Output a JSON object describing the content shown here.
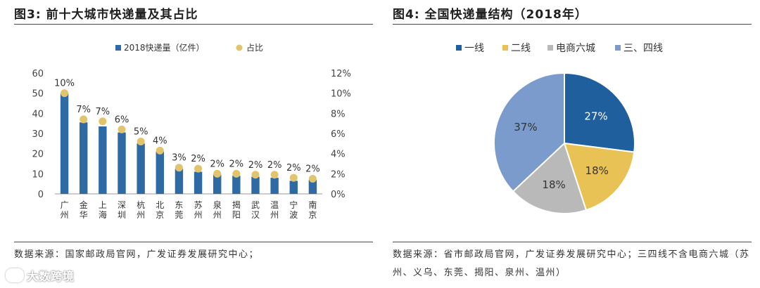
{
  "left": {
    "title": "图3:  前十大城市快递量及其占比",
    "source": "数据来源：国家邮政局官网，广发证券发展研究中心；",
    "chart_data": {
      "type": "bar",
      "categories": [
        "广州",
        "金华",
        "上海",
        "深圳",
        "杭州",
        "北京",
        "东莞",
        "苏州",
        "泉州",
        "揭阳",
        "武汉",
        "温州",
        "宁波",
        "南京"
      ],
      "series": [
        {
          "name": "2018快递量（亿件）",
          "kind": "bar",
          "axis": "left",
          "color": "#2e6aa3",
          "values": [
            50.0,
            35.5,
            33.5,
            30.5,
            25.0,
            21.0,
            12.5,
            11.0,
            9.5,
            9.0,
            8.5,
            8.0,
            6.5,
            7.0
          ]
        },
        {
          "name": "占比",
          "kind": "point",
          "axis": "right",
          "color": "#e2c46c",
          "values": [
            10.0,
            7.4,
            7.2,
            6.4,
            5.2,
            4.3,
            2.6,
            2.5,
            2.0,
            2.0,
            1.9,
            1.9,
            1.6,
            1.5
          ],
          "labels": [
            "10%",
            "7%",
            "7%",
            "6%",
            "5%",
            "4%",
            "3%",
            "2%",
            "2%",
            "2%",
            "2%",
            "2%",
            "2%",
            "2%"
          ]
        }
      ],
      "y_left": {
        "ticks": [
          "0",
          "10",
          "20",
          "30",
          "40",
          "50",
          "60"
        ],
        "lim": [
          0,
          60
        ]
      },
      "y_right": {
        "ticks": [
          "0%",
          "2%",
          "4%",
          "6%",
          "8%",
          "10%",
          "12%"
        ],
        "lim": [
          0,
          12
        ]
      },
      "legend": "top-center",
      "grid": false
    }
  },
  "right": {
    "title": "图4:  全国快递量结构（2018年）",
    "source": "数据来源：省市邮政局官网，广发证券发展研究中心；三四线不含电商六城（苏州、义乌、东莞、揭阳、泉州、温州）",
    "chart_data": {
      "type": "pie",
      "slices": [
        {
          "name": "一线",
          "value": 27,
          "label": "27%",
          "color": "#1f5f9e"
        },
        {
          "name": "二线",
          "value": 18,
          "label": "18%",
          "color": "#e8c254"
        },
        {
          "name": "电商六城",
          "value": 18,
          "label": "18%",
          "color": "#b9b9b9"
        },
        {
          "name": "三、四线",
          "value": 37,
          "label": "37%",
          "color": "#7a9bcb"
        }
      ],
      "legend": "top-center"
    }
  },
  "watermark": "大数跨境"
}
